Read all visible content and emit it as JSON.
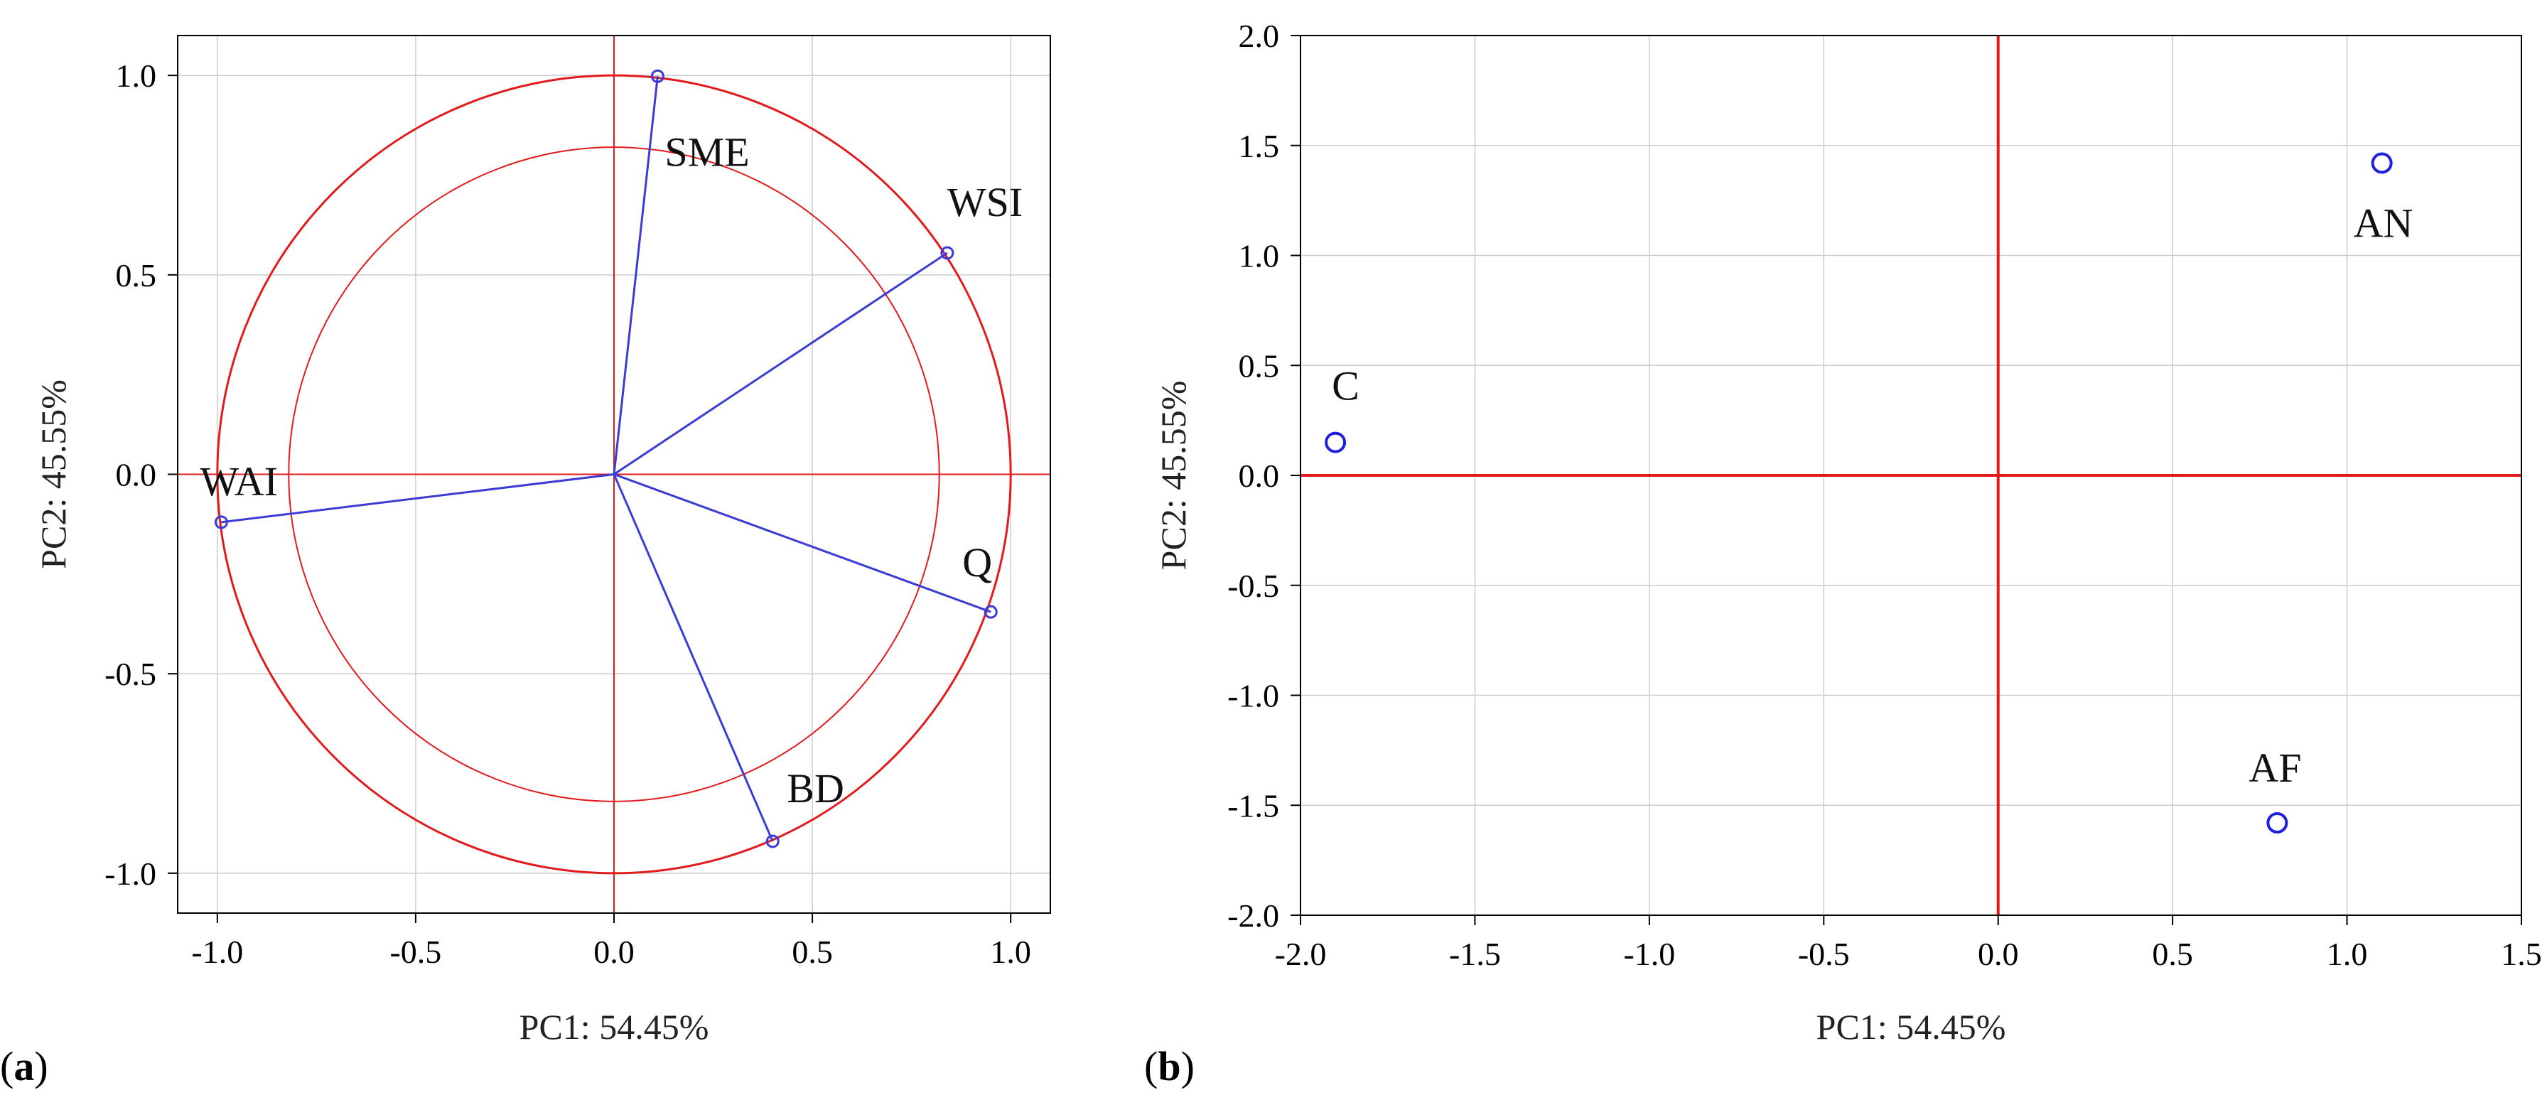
{
  "chart_data": [
    {
      "type": "scatter",
      "subtype": "correlation-circle",
      "panel_label": "(a)",
      "xlabel": "PC1: 54.45%",
      "ylabel": "PC2: 45.55%",
      "xlim": [
        -1.1,
        1.1
      ],
      "ylim": [
        -1.1,
        1.1
      ],
      "xticks": [
        "-1.0",
        "-0.5",
        "0.0",
        "0.5",
        "1.0"
      ],
      "yticks": [
        "1.0",
        "0.5",
        "0.0",
        "-0.5",
        "-1.0"
      ],
      "grid": true,
      "circles": [
        1.0,
        0.82
      ],
      "points": [
        {
          "label": "SME",
          "x": 0.11,
          "y": 0.998
        },
        {
          "label": "WSI",
          "x": 0.84,
          "y": 0.555
        },
        {
          "label": "WAI",
          "x": -0.99,
          "y": -0.12
        },
        {
          "label": "Q",
          "x": 0.95,
          "y": -0.345
        },
        {
          "label": "BD",
          "x": 0.4,
          "y": -0.92
        }
      ],
      "colors": {
        "vectors": "#3b3bd6",
        "circle": "#e31a1c",
        "axes": "#e31a1c",
        "grid": "#cccccc"
      }
    },
    {
      "type": "scatter",
      "panel_label": "(b)",
      "xlabel": "PC1: 54.45%",
      "ylabel": "PC2: 45.55%",
      "xlim": [
        -2.0,
        1.5
      ],
      "ylim": [
        -2.0,
        2.0
      ],
      "xticks": [
        "-2.0",
        "-1.5",
        "-1.0",
        "-0.5",
        "0.0",
        "0.5",
        "1.0",
        "1.5"
      ],
      "yticks": [
        "2.0",
        "1.5",
        "1.0",
        "0.5",
        "0.0",
        "-0.5",
        "-1.0",
        "-1.5",
        "-2.0"
      ],
      "grid": true,
      "points": [
        {
          "label": "AN",
          "x": 1.1,
          "y": 1.42
        },
        {
          "label": "C",
          "x": -1.9,
          "y": 0.15
        },
        {
          "label": "AF",
          "x": 0.8,
          "y": -1.58
        }
      ],
      "colors": {
        "points": "#1f1fe0",
        "axes": "#e31a1c",
        "grid": "#cccccc"
      }
    }
  ]
}
